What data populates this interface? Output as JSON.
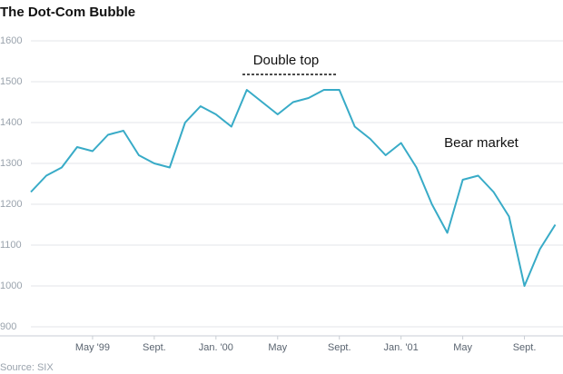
{
  "chart_data": {
    "type": "line",
    "title": "The Dot-Com Bubble",
    "source": "Source: SIX",
    "x": [
      "1999-01",
      "1999-02",
      "1999-03",
      "1999-04",
      "1999-05",
      "1999-06",
      "1999-07",
      "1999-08",
      "1999-09",
      "1999-10",
      "1999-11",
      "1999-12",
      "2000-01",
      "2000-02",
      "2000-03",
      "2000-04",
      "2000-05",
      "2000-06",
      "2000-07",
      "2000-08",
      "2000-09",
      "2000-10",
      "2000-11",
      "2000-12",
      "2001-01",
      "2001-02",
      "2001-03",
      "2001-04",
      "2001-05",
      "2001-06",
      "2001-07",
      "2001-08",
      "2001-09",
      "2001-10",
      "2001-11"
    ],
    "series": [
      {
        "name": "SIX",
        "color": "#38abc7",
        "values": [
          1230,
          1270,
          1290,
          1340,
          1330,
          1370,
          1380,
          1320,
          1300,
          1290,
          1400,
          1440,
          1420,
          1390,
          1480,
          1450,
          1420,
          1450,
          1460,
          1480,
          1480,
          1390,
          1360,
          1320,
          1350,
          1290,
          1200,
          1130,
          1260,
          1270,
          1230,
          1170,
          1000,
          1090,
          1150
        ]
      }
    ],
    "xlim": [
      "1999-01",
      "2001-11"
    ],
    "xticks": [
      {
        "value": "1999-05",
        "label": "May '99"
      },
      {
        "value": "1999-09",
        "label": "Sept."
      },
      {
        "value": "2000-01",
        "label": "Jan. '00"
      },
      {
        "value": "2000-05",
        "label": "May"
      },
      {
        "value": "2000-09",
        "label": "Sept."
      },
      {
        "value": "2001-01",
        "label": "Jan. '01"
      },
      {
        "value": "2001-05",
        "label": "May"
      },
      {
        "value": "2001-09",
        "label": "Sept."
      }
    ],
    "ylim": [
      900,
      1600
    ],
    "yticks": [
      900,
      1000,
      1100,
      1200,
      1300,
      1400,
      1500,
      1600
    ],
    "grid": true,
    "annotations": [
      {
        "text": "Double top"
      },
      {
        "text": "Bear market"
      }
    ]
  }
}
